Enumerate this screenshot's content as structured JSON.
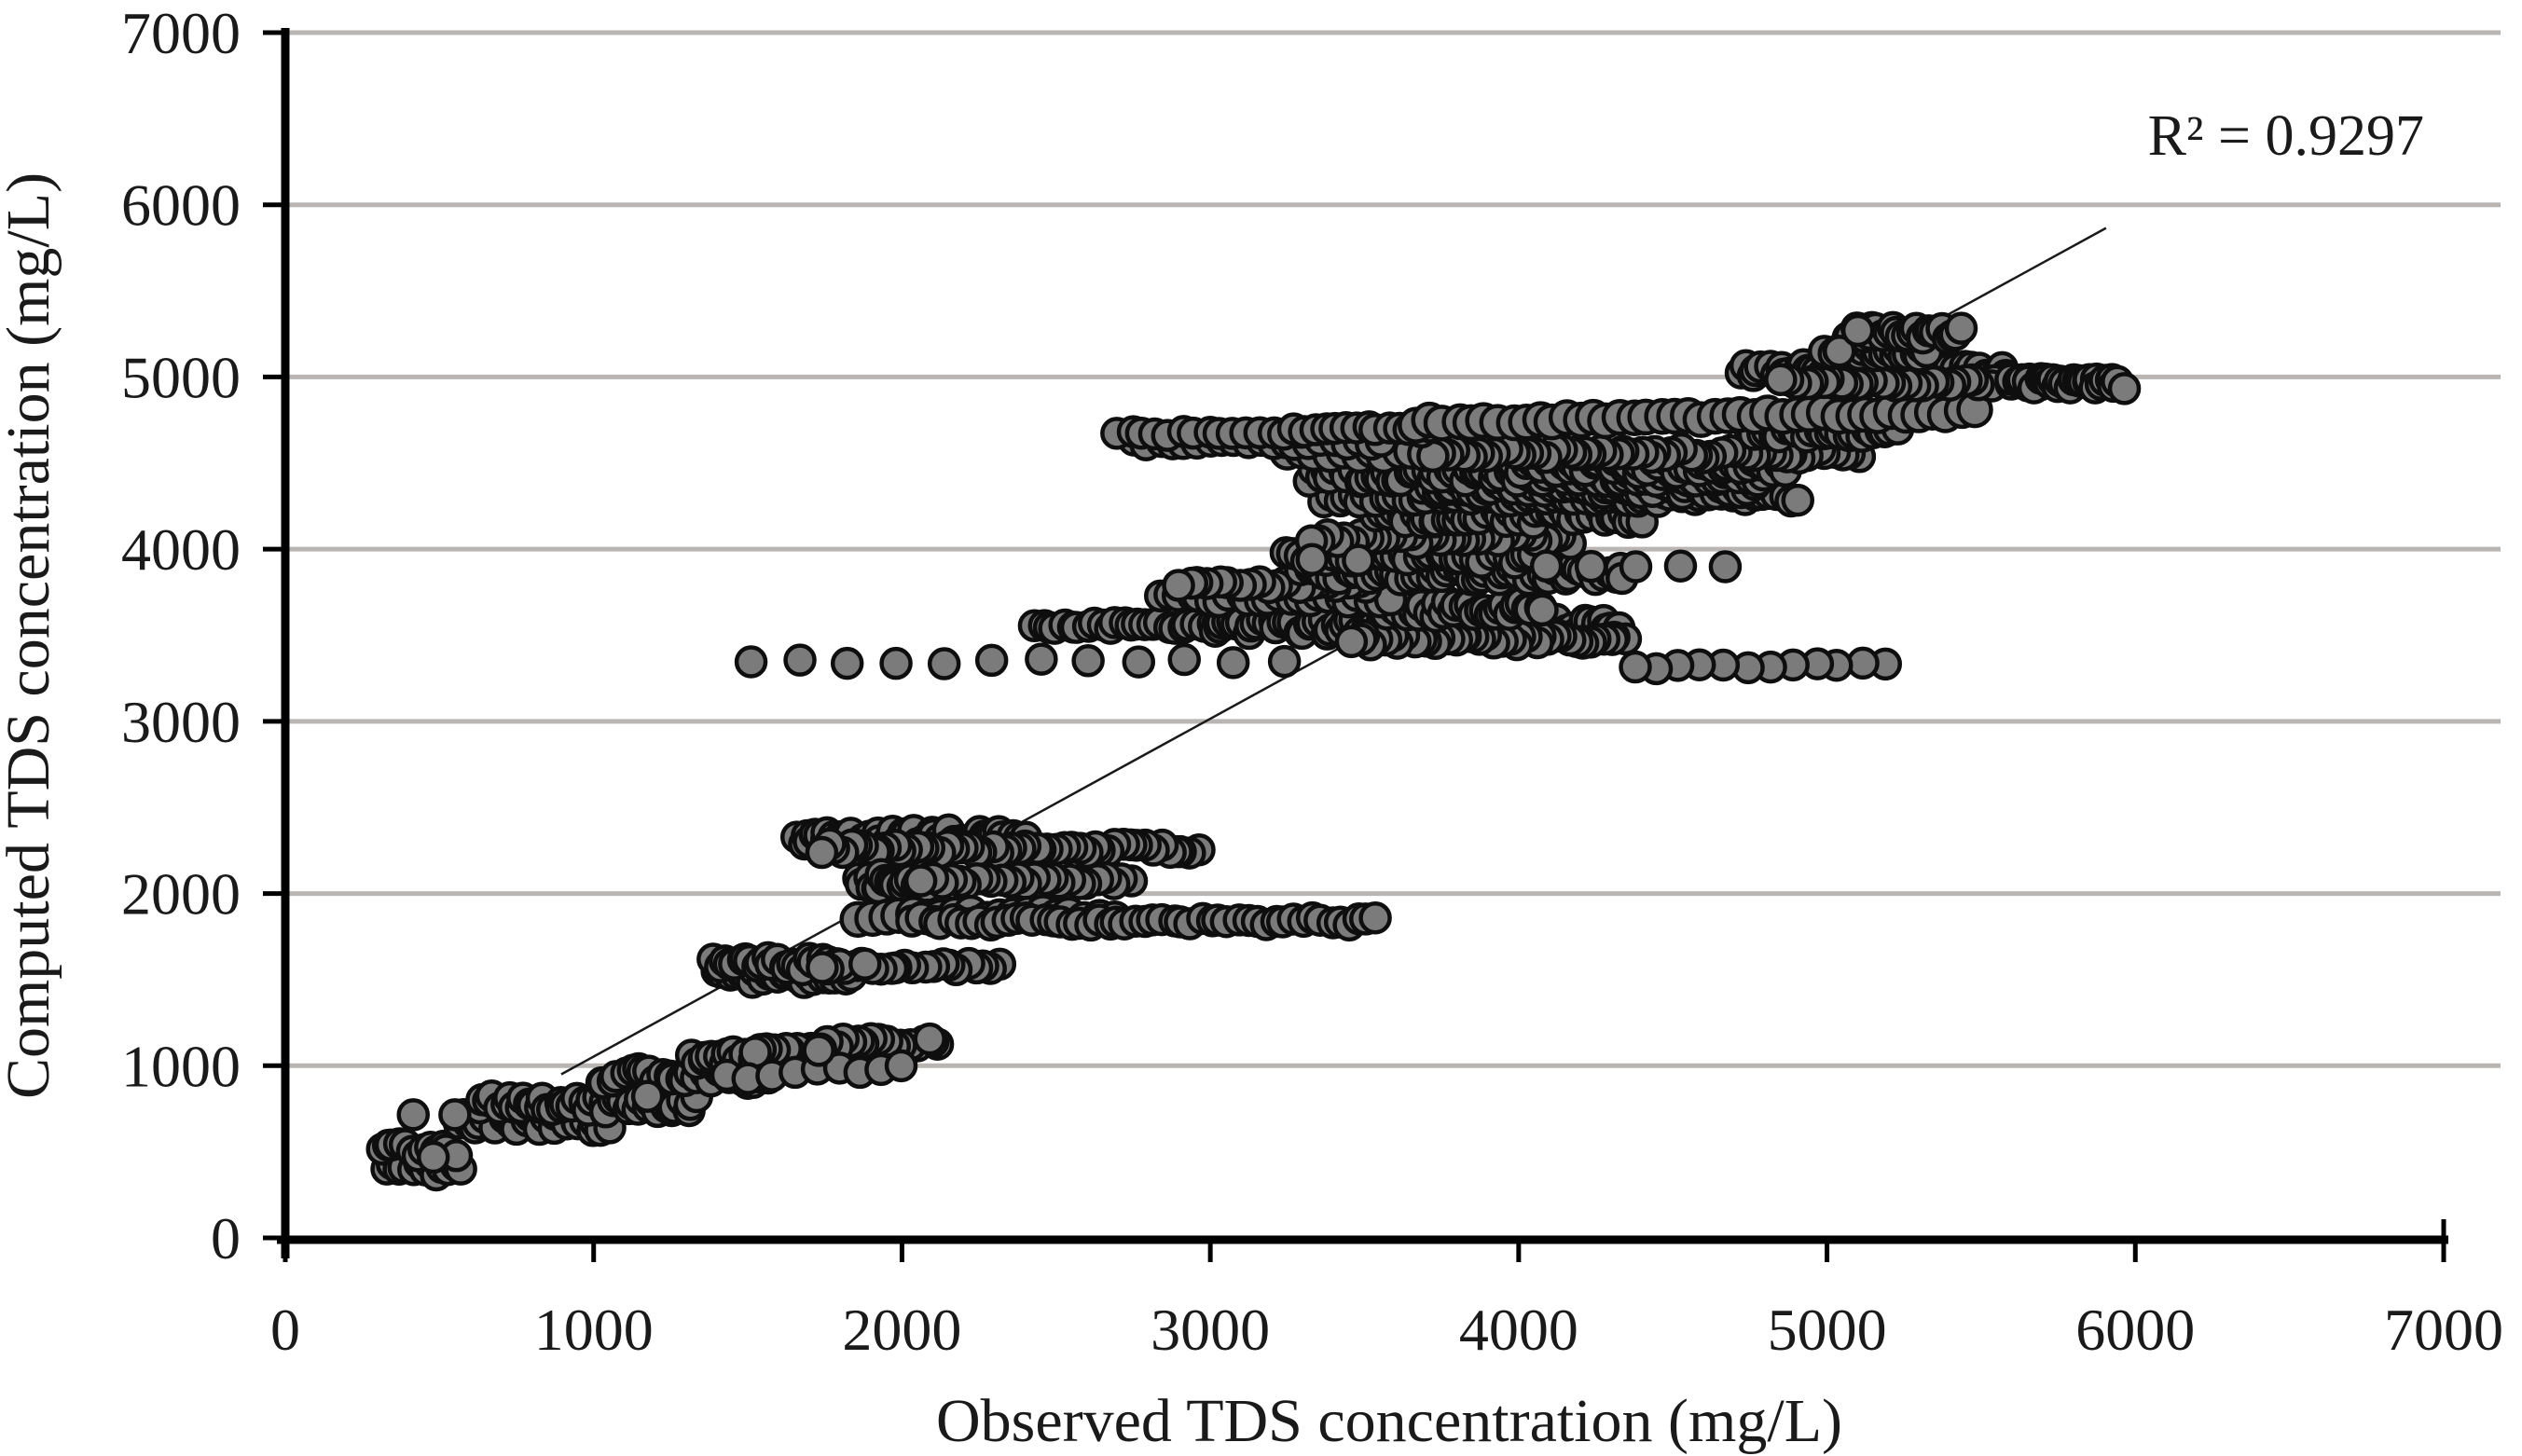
{
  "chart_data": {
    "type": "scatter",
    "title": "",
    "xlabel": "Observed TDS concentration (mg/L)",
    "ylabel": "Computed TDS concentration (mg/L)",
    "annotation": "R² = 0.9297",
    "xlim": [
      0,
      7000
    ],
    "ylim": [
      0,
      7000
    ],
    "xticks": [
      0,
      1000,
      2000,
      3000,
      4000,
      5000,
      6000,
      7000
    ],
    "yticks": [
      0,
      1000,
      2000,
      3000,
      4000,
      5000,
      6000,
      7000
    ],
    "grid": "horizontal-only",
    "legend": "none",
    "marker": {
      "shape": "circle",
      "fill": "#7b7b7b",
      "stroke": "#0e0e0e",
      "stroke_width": 4.5,
      "radius": 15.5
    },
    "trendline": {
      "type": "linear",
      "x1": 895,
      "y1": 950,
      "x2": 5905,
      "y2": 5865,
      "color": "#1a1a1a",
      "width": 2.5
    },
    "colors": {
      "gridline": "#b8b5b2",
      "axis": "#000000",
      "text": "#1a1a1a",
      "background": "#ffffff"
    },
    "bands_note": "Each band is a run of overlapping markers: y = computed level (mg/L), x1..x2 = observed range (mg/L), step = spacing, dir = draw order (rtl gives right-facing crescents), slope = rise of computed per observed unit, jy = vertical scatter px, r = marker radius px",
    "point_bands": [
      {
        "y": 400,
        "x1": 330,
        "x2": 565,
        "step": 20,
        "jy": 7
      },
      {
        "y": 510,
        "x1": 310,
        "x2": 545,
        "step": 20,
        "jy": 7
      },
      {
        "y": 670,
        "x1": 560,
        "x2": 1050,
        "step": 18,
        "jy": 9
      },
      {
        "y": 780,
        "x1": 630,
        "x2": 1335,
        "step": 16,
        "jy": 9
      },
      {
        "y": 940,
        "x1": 1020,
        "x2": 1560,
        "step": 20,
        "jy": 8
      },
      {
        "y": 1040,
        "x1": 1315,
        "x2": 1815,
        "step": 18,
        "jy": 8
      },
      {
        "y": 1100,
        "x1": 1520,
        "x2": 2130,
        "step": 24,
        "jy": 6,
        "slope": 0.09,
        "dir": "rtl"
      },
      {
        "y": 935,
        "x1": 1430,
        "x2": 2030,
        "step": 72,
        "jy": 4,
        "slope": 0.1
      },
      {
        "y": 1520,
        "x1": 1395,
        "x2": 1835,
        "step": 17,
        "jy": 7
      },
      {
        "y": 1590,
        "x1": 1395,
        "x2": 1790,
        "step": 17,
        "jy": 7
      },
      {
        "y": 1578,
        "x1": 1735,
        "x2": 2330,
        "step": 28,
        "dir": "rtl",
        "jy": 4
      },
      {
        "y": 2330,
        "x1": 1660,
        "x2": 2400,
        "step": 15,
        "jy": 8
      },
      {
        "y": 2262,
        "x1": 1735,
        "x2": 2970,
        "step": 24,
        "dir": "rtl",
        "jy": 5
      },
      {
        "y": 2070,
        "x1": 1865,
        "x2": 2090,
        "step": 12,
        "jy": 8
      },
      {
        "y": 2072,
        "x1": 2070,
        "x2": 2745,
        "step": 28,
        "dir": "rtl",
        "jy": 4
      },
      {
        "y": 1868,
        "x1": 1855,
        "x2": 2675,
        "step": 46,
        "jy": 4,
        "r": 17.5
      },
      {
        "y": 1838,
        "x1": 2040,
        "x2": 3530,
        "step": 30,
        "jy": 4
      },
      {
        "y": 3345,
        "x1": 1510,
        "x2": 3240,
        "step": 157,
        "jy": 3
      },
      {
        "y": 3310,
        "x1": 4370,
        "x2": 5180,
        "step": 74,
        "dir": "rtl",
        "jy": 3,
        "slope": 0.045
      },
      {
        "y": 3555,
        "x1": 2430,
        "x2": 3050,
        "step": 24,
        "jy": 4
      },
      {
        "y": 3550,
        "x1": 3010,
        "x2": 4320,
        "step": 16,
        "jy": 8
      },
      {
        "y": 3470,
        "x1": 3460,
        "x2": 4330,
        "step": 22,
        "dir": "rtl",
        "jy": 6
      },
      {
        "y": 3650,
        "x1": 3550,
        "x2": 4070,
        "step": 16,
        "jy": 8
      },
      {
        "y": 3715,
        "x1": 2840,
        "x2": 3580,
        "step": 32,
        "jy": 4
      },
      {
        "y": 3790,
        "x1": 2900,
        "x2": 3500,
        "step": 32,
        "dir": "rtl",
        "jy": 4
      },
      {
        "y": 3865,
        "x1": 3300,
        "x2": 4350,
        "step": 18,
        "jy": 8
      },
      {
        "y": 3950,
        "x1": 3240,
        "x2": 4050,
        "step": 24,
        "jy": 6
      },
      {
        "y": 4060,
        "x1": 3330,
        "x2": 4150,
        "step": 26,
        "dir": "rtl",
        "jy": 5
      },
      {
        "y": 4190,
        "x1": 3540,
        "x2": 4400,
        "step": 20,
        "jy": 7
      },
      {
        "y": 4300,
        "x1": 3370,
        "x2": 4900,
        "step": 24,
        "jy": 5
      },
      {
        "y": 4360,
        "x1": 3680,
        "x2": 4760,
        "step": 18,
        "jy": 7
      },
      {
        "y": 4430,
        "x1": 3320,
        "x2": 4800,
        "step": 18,
        "jy": 7
      },
      {
        "y": 4480,
        "x1": 3980,
        "x2": 4850,
        "step": 20,
        "jy": 7
      },
      {
        "y": 4560,
        "x1": 3250,
        "x2": 3700,
        "step": 45,
        "jy": 3,
        "r": 17.5
      },
      {
        "y": 4555,
        "x1": 3720,
        "x2": 5100,
        "step": 26,
        "dir": "rtl",
        "jy": 5
      },
      {
        "y": 4680,
        "x1": 4750,
        "x2": 5230,
        "step": 20,
        "jy": 6
      },
      {
        "y": 4620,
        "x1": 2760,
        "x2": 3550,
        "step": 40,
        "jy": 3
      },
      {
        "y": 4668,
        "x1": 2700,
        "x2": 3280,
        "step": 42,
        "jy": 3
      },
      {
        "y": 4695,
        "x1": 3270,
        "x2": 3720,
        "step": 34,
        "jy": 3
      },
      {
        "y": 4735,
        "x1": 3670,
        "x2": 5480,
        "step": 44,
        "jy": 3,
        "r": 17.5,
        "slope": 0.035
      },
      {
        "y": 5040,
        "x1": 4720,
        "x2": 5580,
        "step": 18,
        "jy": 6
      },
      {
        "y": 4968,
        "x1": 4850,
        "x2": 5740,
        "step": 27,
        "dir": "rtl",
        "jy": 4
      },
      {
        "y": 4962,
        "x1": 5590,
        "x2": 5965,
        "step": 12,
        "jy": 6
      },
      {
        "y": 5150,
        "x1": 5000,
        "x2": 5330,
        "step": 15,
        "jy": 6
      },
      {
        "y": 5255,
        "x1": 5060,
        "x2": 5430,
        "step": 15,
        "jy": 6
      }
    ],
    "single_points": [
      {
        "x": 480,
        "y": 468
      },
      {
        "x": 415,
        "y": 715
      },
      {
        "x": 550,
        "y": 715
      },
      {
        "x": 1175,
        "y": 822
      },
      {
        "x": 1730,
        "y": 1089
      },
      {
        "x": 2090,
        "y": 1155
      },
      {
        "x": 1880,
        "y": 1590
      },
      {
        "x": 3330,
        "y": 3940
      },
      {
        "x": 3480,
        "y": 3935
      },
      {
        "x": 4090,
        "y": 3902
      },
      {
        "x": 4235,
        "y": 3900
      },
      {
        "x": 4380,
        "y": 3898
      },
      {
        "x": 4525,
        "y": 3902
      },
      {
        "x": 4670,
        "y": 3898
      },
      {
        "x": 5040,
        "y": 5150
      },
      {
        "x": 5100,
        "y": 5270
      }
    ]
  }
}
